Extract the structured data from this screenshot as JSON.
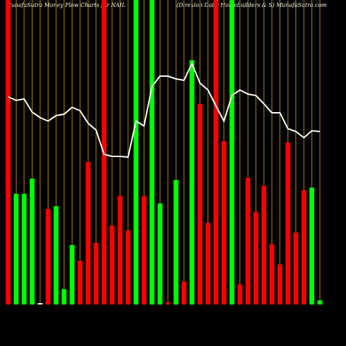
{
  "chart_data": {
    "type": "bar",
    "title": "MunafaSutra  Money Flow  Charts for NAIL",
    "subtitle": "(Direxion  Daily  Homebuilders & S) MunafaSutra.com",
    "values": [
      440,
      160,
      160,
      182,
      2,
      138,
      142,
      22,
      86,
      63,
      206,
      89,
      440,
      114,
      157,
      107,
      440,
      157,
      440,
      146,
      3,
      180,
      33,
      353,
      290,
      118,
      440,
      236,
      440,
      29,
      183,
      134,
      171,
      87,
      58,
      234,
      104,
      165,
      169,
      6
    ],
    "bar_colors": [
      "#ff0000",
      "#00ff00",
      "#00ff00",
      "#00ff00",
      "#ffffff",
      "#ff0000",
      "#00ff00",
      "#00ff00",
      "#00ff00",
      "#ff0000",
      "#ff0000",
      "#ff0000",
      "#ff0000",
      "#ff0000",
      "#ff0000",
      "#ff0000",
      "#00ff00",
      "#ff0000",
      "#00ff00",
      "#00ff00",
      "#ff0000",
      "#00ff00",
      "#ff0000",
      "#00ff00",
      "#ff0000",
      "#ff0000",
      "#ff0000",
      "#ff0000",
      "#00ff00",
      "#ff0000",
      "#ff0000",
      "#ff0000",
      "#ff0000",
      "#ff0000",
      "#ff0000",
      "#ff0000",
      "#ff0000",
      "#ff0000",
      "#00ff00",
      "#00ff00"
    ],
    "line": {
      "color": "#ffffff",
      "values": [
        300,
        295,
        297,
        278,
        270,
        265,
        273,
        275,
        285,
        280,
        262,
        252,
        217,
        214,
        214,
        213,
        265,
        258,
        315,
        330,
        330,
        326,
        324,
        348,
        320,
        310,
        287,
        265,
        302,
        310,
        304,
        302,
        290,
        277,
        277,
        254,
        250,
        241,
        251,
        250
      ]
    },
    "ylim": [
      0,
      440
    ],
    "grid": true,
    "grid_color": "#b8860b"
  }
}
